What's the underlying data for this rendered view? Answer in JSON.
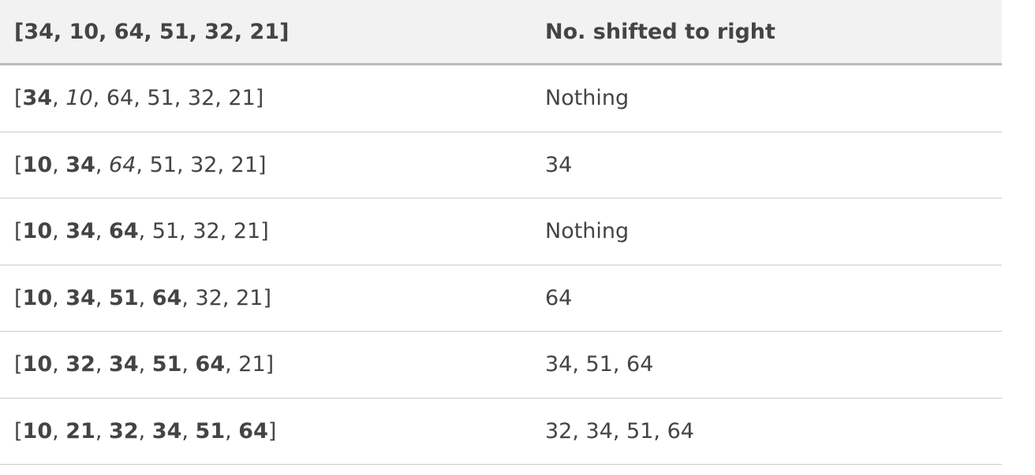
{
  "table": {
    "header": [
      "[34, 10, 64, 51, 32, 21]",
      "No. shifted to right"
    ],
    "list_open": "[",
    "list_separator": ", ",
    "list_close": "]",
    "rows": [
      {
        "list": [
          {
            "text": "34",
            "style": "bold"
          },
          {
            "text": "10",
            "style": "italic"
          },
          {
            "text": "64",
            "style": "plain"
          },
          {
            "text": "51",
            "style": "plain"
          },
          {
            "text": "32",
            "style": "plain"
          },
          {
            "text": "21",
            "style": "plain"
          }
        ],
        "shifted": "Nothing"
      },
      {
        "list": [
          {
            "text": "10",
            "style": "bold"
          },
          {
            "text": "34",
            "style": "bold"
          },
          {
            "text": "64",
            "style": "italic"
          },
          {
            "text": "51",
            "style": "plain"
          },
          {
            "text": "32",
            "style": "plain"
          },
          {
            "text": "21",
            "style": "plain"
          }
        ],
        "shifted": "34"
      },
      {
        "list": [
          {
            "text": "10",
            "style": "bold"
          },
          {
            "text": "34",
            "style": "bold"
          },
          {
            "text": "64",
            "style": "bold"
          },
          {
            "text": "51",
            "style": "plain"
          },
          {
            "text": "32",
            "style": "plain"
          },
          {
            "text": "21",
            "style": "plain"
          }
        ],
        "shifted": "Nothing"
      },
      {
        "list": [
          {
            "text": "10",
            "style": "bold"
          },
          {
            "text": "34",
            "style": "bold"
          },
          {
            "text": "51",
            "style": "bold"
          },
          {
            "text": "64",
            "style": "bold"
          },
          {
            "text": "32",
            "style": "plain"
          },
          {
            "text": "21",
            "style": "plain"
          }
        ],
        "shifted": "64"
      },
      {
        "list": [
          {
            "text": "10",
            "style": "bold"
          },
          {
            "text": "32",
            "style": "bold"
          },
          {
            "text": "34",
            "style": "bold"
          },
          {
            "text": "51",
            "style": "bold"
          },
          {
            "text": "64",
            "style": "bold"
          },
          {
            "text": "21",
            "style": "plain"
          }
        ],
        "shifted": "34, 51, 64"
      },
      {
        "list": [
          {
            "text": "10",
            "style": "bold"
          },
          {
            "text": "21",
            "style": "bold"
          },
          {
            "text": "32",
            "style": "bold"
          },
          {
            "text": "34",
            "style": "bold"
          },
          {
            "text": "51",
            "style": "bold"
          },
          {
            "text": "64",
            "style": "bold"
          }
        ],
        "shifted": "32, 34, 51, 64"
      }
    ]
  }
}
